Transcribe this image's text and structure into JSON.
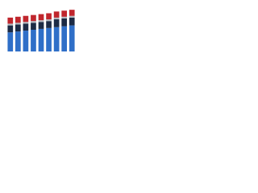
{
  "chart_data": {
    "type": "stacked-bar",
    "categories": [
      null,
      null,
      null,
      null,
      null,
      null,
      null,
      null,
      null
    ],
    "series": [
      {
        "color": "#2f6fc8",
        "values": [
          22,
          23,
          24,
          25,
          26,
          27,
          28,
          29,
          30
        ]
      },
      {
        "color": "#1c2b45",
        "values": [
          8,
          8,
          8,
          8,
          8,
          8,
          9,
          9,
          9
        ]
      },
      {
        "color": "#b3b8bf",
        "values": [
          2,
          2,
          2,
          2,
          2,
          2,
          2,
          2,
          2
        ]
      },
      {
        "color": "#c0262d",
        "values": [
          7,
          7,
          7,
          7,
          7,
          7,
          7,
          7,
          7
        ]
      }
    ],
    "ylim": [
      0,
      50
    ]
  }
}
